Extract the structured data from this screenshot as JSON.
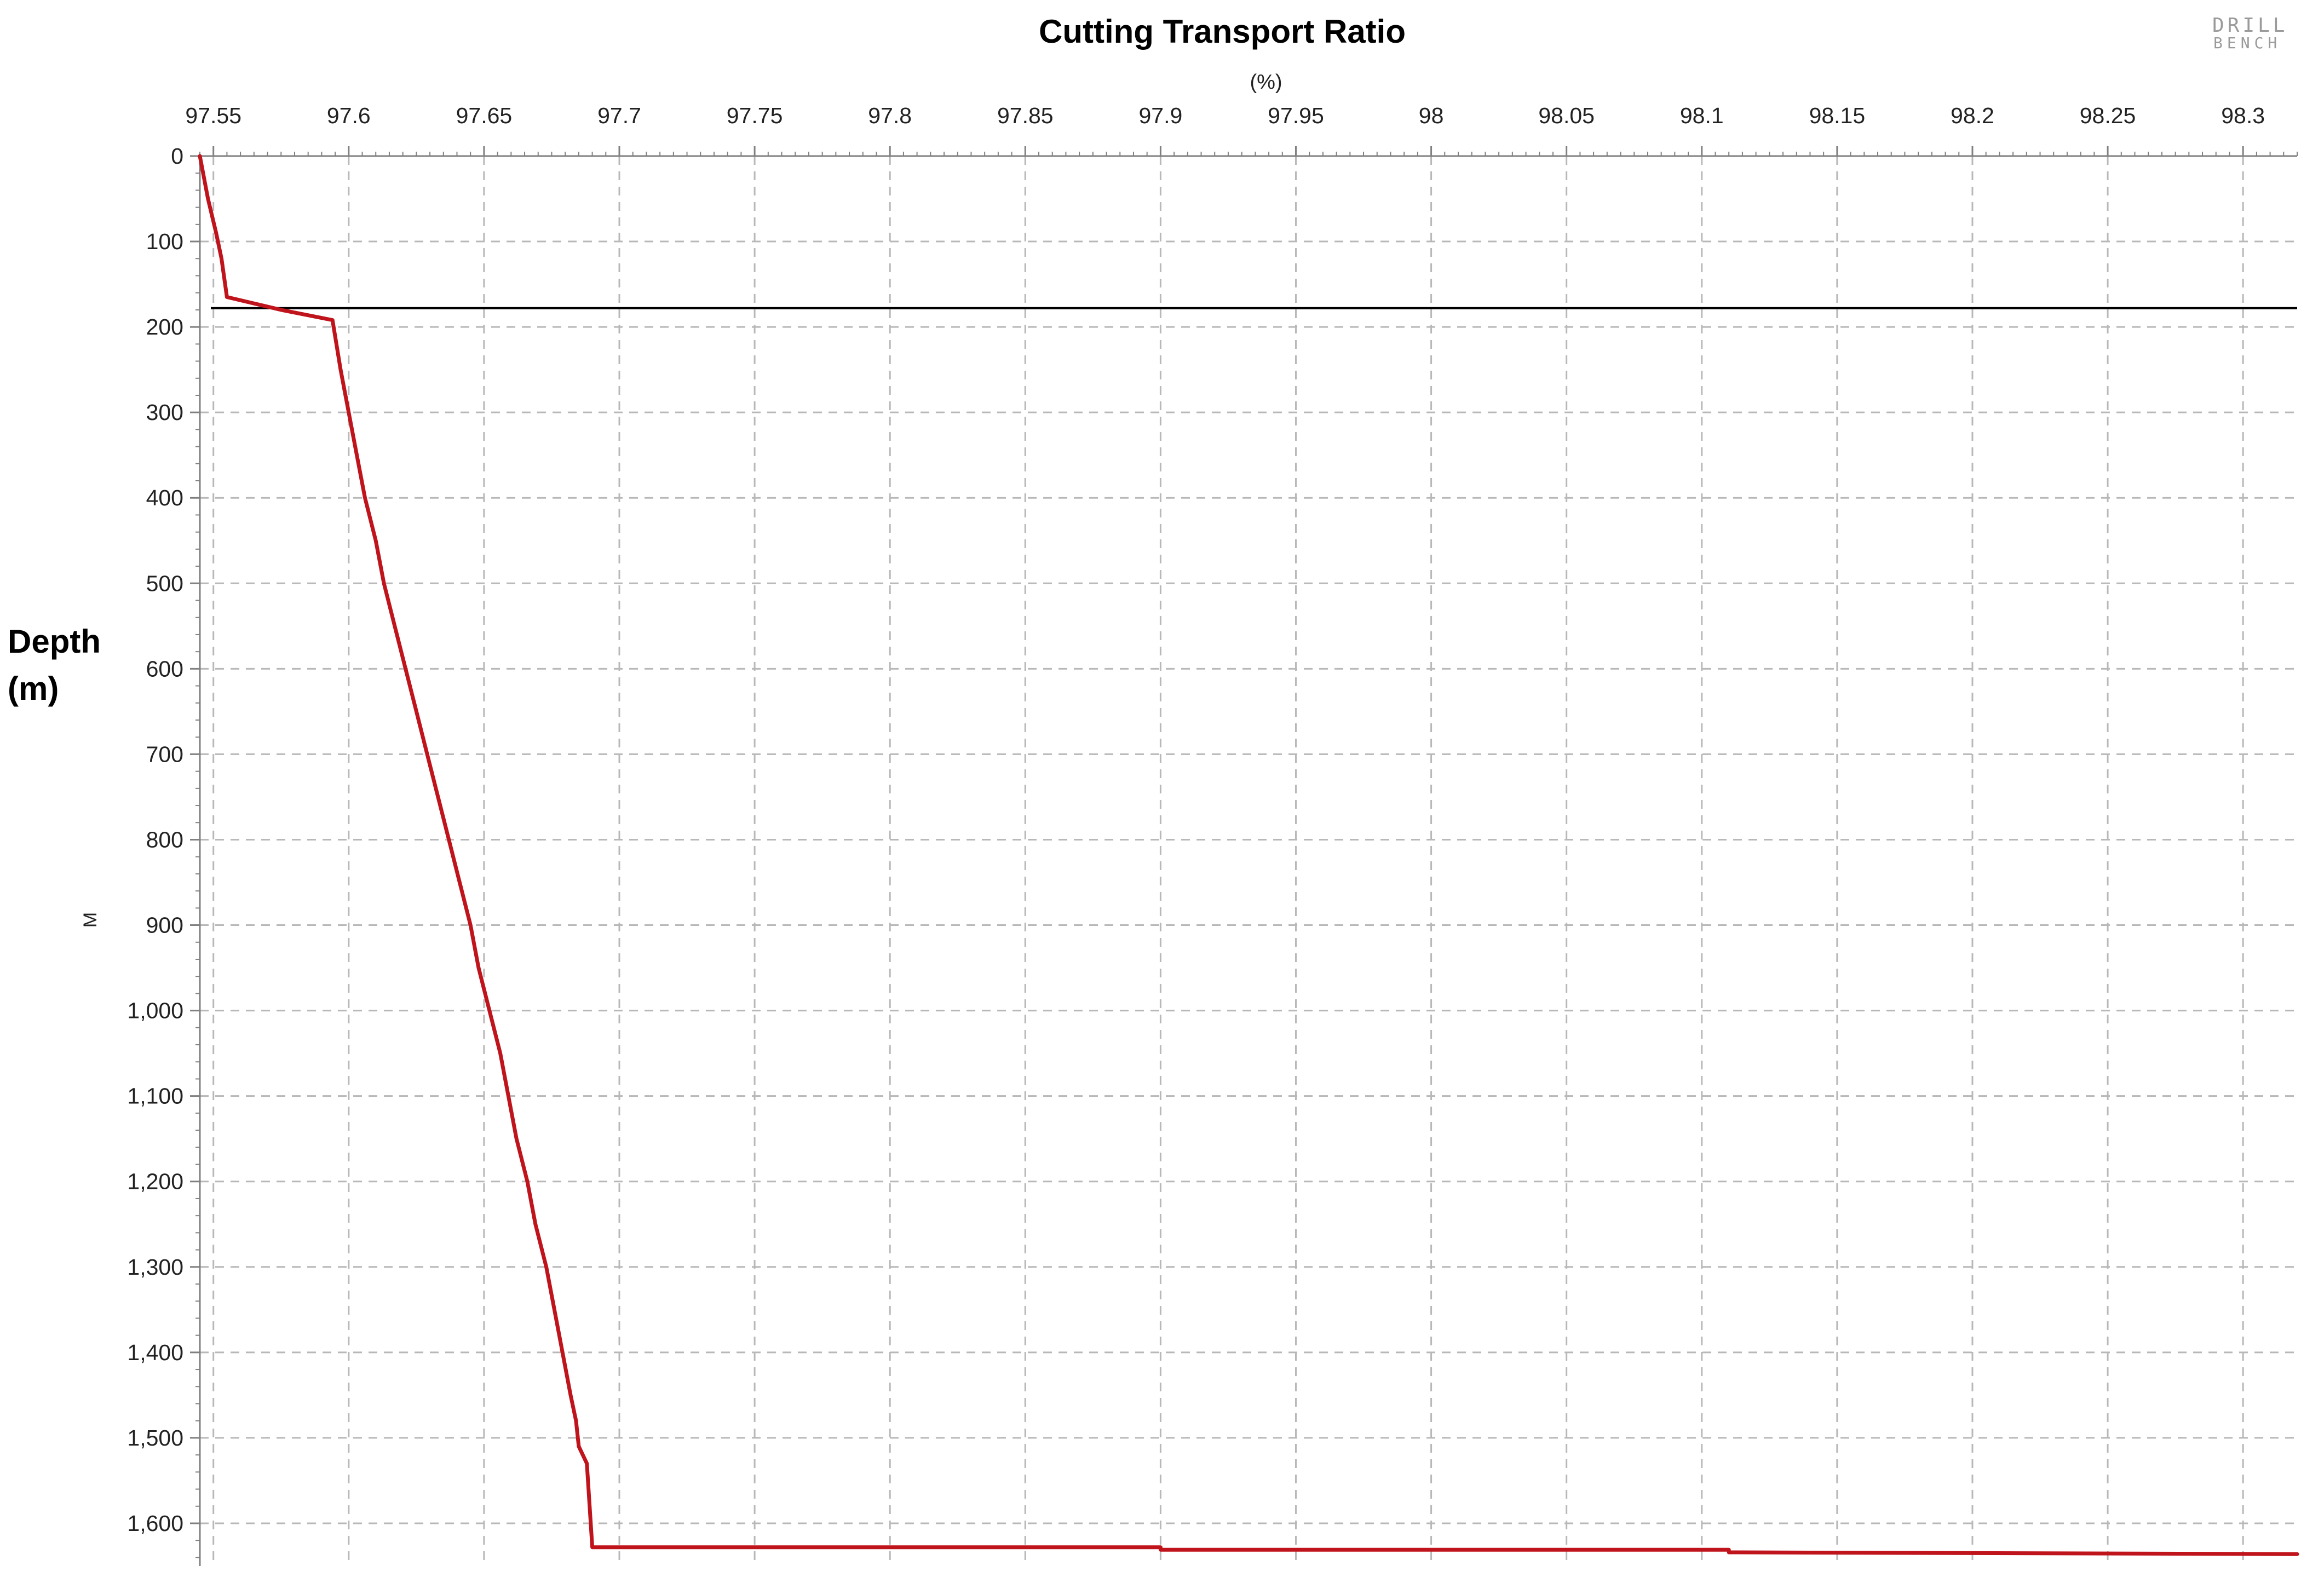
{
  "logo": {
    "line1": "DRILL",
    "line2": "BENCH"
  },
  "chart_data": {
    "type": "line",
    "title": "Cutting Transport Ratio",
    "xlabel": "(%)",
    "ylabel_main": [
      "Depth",
      "(m)"
    ],
    "ylabel_axis": "M",
    "xlim": [
      97.545,
      98.32
    ],
    "ylim": [
      0,
      1650
    ],
    "y_inverted": true,
    "x_axis_position": "top",
    "grid": true,
    "x_ticks": [
      97.55,
      97.6,
      97.65,
      97.7,
      97.75,
      97.8,
      97.85,
      97.9,
      97.95,
      98,
      98.05,
      98.1,
      98.15,
      98.2,
      98.25,
      98.3
    ],
    "x_tick_labels": [
      "97.55",
      "97.6",
      "97.65",
      "97.7",
      "97.75",
      "97.8",
      "97.85",
      "97.9",
      "97.95",
      "98",
      "98.05",
      "98.1",
      "98.15",
      "98.2",
      "98.25",
      "98.3"
    ],
    "y_ticks": [
      0,
      100,
      200,
      300,
      400,
      500,
      600,
      700,
      800,
      900,
      1000,
      1100,
      1200,
      1300,
      1400,
      1500,
      1600
    ],
    "y_tick_labels": [
      "0",
      "100",
      "200",
      "300",
      "400",
      "500",
      "600",
      "700",
      "800",
      "900",
      "1,000",
      "1,100",
      "1,200",
      "1,300",
      "1,400",
      "1,500",
      "1,600"
    ],
    "reference_line": {
      "depth": 178,
      "color": "#000000"
    },
    "series": [
      {
        "color": "#c0141c",
        "points": [
          [
            97.545,
            0
          ],
          [
            97.548,
            50
          ],
          [
            97.551,
            90
          ],
          [
            97.553,
            120
          ],
          [
            97.555,
            165
          ],
          [
            97.575,
            180
          ],
          [
            97.594,
            192
          ],
          [
            97.597,
            250
          ],
          [
            97.6,
            300
          ],
          [
            97.603,
            350
          ],
          [
            97.606,
            400
          ],
          [
            97.61,
            450
          ],
          [
            97.613,
            500
          ],
          [
            97.617,
            550
          ],
          [
            97.621,
            600
          ],
          [
            97.625,
            650
          ],
          [
            97.629,
            700
          ],
          [
            97.633,
            750
          ],
          [
            97.637,
            800
          ],
          [
            97.641,
            850
          ],
          [
            97.645,
            900
          ],
          [
            97.648,
            950
          ],
          [
            97.652,
            1000
          ],
          [
            97.656,
            1050
          ],
          [
            97.659,
            1100
          ],
          [
            97.662,
            1150
          ],
          [
            97.666,
            1200
          ],
          [
            97.669,
            1250
          ],
          [
            97.673,
            1300
          ],
          [
            97.676,
            1350
          ],
          [
            97.679,
            1400
          ],
          [
            97.682,
            1450
          ],
          [
            97.684,
            1480
          ],
          [
            97.685,
            1510
          ],
          [
            97.688,
            1530
          ],
          [
            97.69,
            1628
          ],
          [
            97.9,
            1628
          ],
          [
            97.9,
            1631
          ],
          [
            98.11,
            1631
          ],
          [
            98.11,
            1634
          ],
          [
            98.32,
            1636
          ]
        ]
      }
    ]
  }
}
